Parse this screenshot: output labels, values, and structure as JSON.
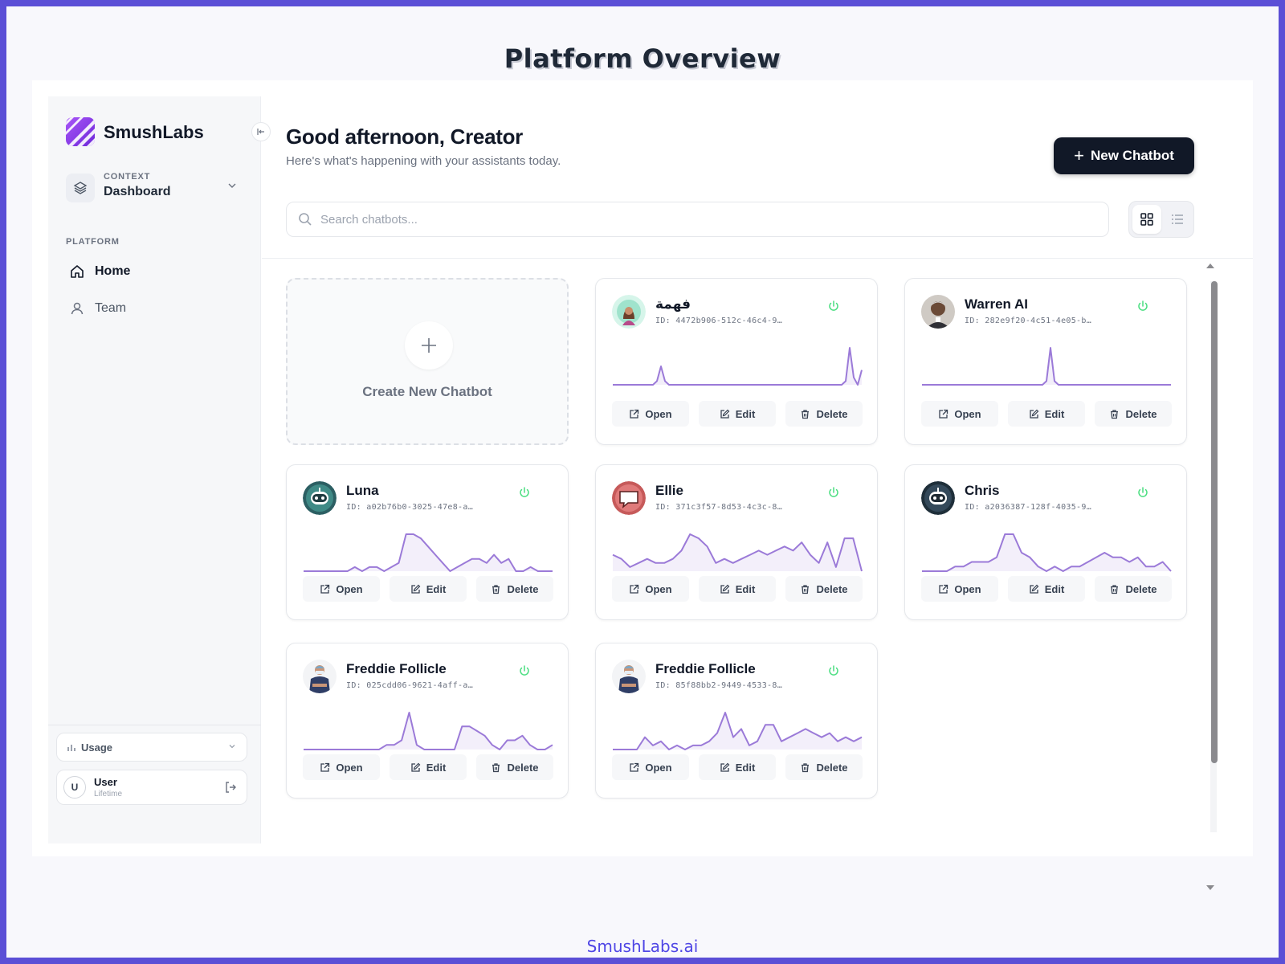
{
  "page_title": "Platform Overview",
  "footer_brand": "SmushLabs.ai",
  "sidebar": {
    "brand": "SmushLabs",
    "context_label": "CONTEXT",
    "context_value": "Dashboard",
    "section_label": "PLATFORM",
    "nav": [
      {
        "label": "Home",
        "icon": "home-icon",
        "active": true
      },
      {
        "label": "Team",
        "icon": "user-icon",
        "active": false
      }
    ],
    "usage_label": "Usage",
    "user": {
      "initial": "U",
      "name": "User",
      "plan": "Lifetime"
    }
  },
  "header": {
    "greeting": "Good afternoon, Creator",
    "subtext": "Here's what's happening with your assistants today.",
    "new_button": "New Chatbot"
  },
  "search": {
    "placeholder": "Search chatbots...",
    "value": ""
  },
  "create_card_label": "Create New Chatbot",
  "action_labels": {
    "open": "Open",
    "edit": "Edit",
    "delete": "Delete"
  },
  "colors": {
    "accent": "#9b7ad8",
    "power": "#4ade80",
    "dark_button": "#111827"
  },
  "chatbots": [
    {
      "name": "فهمة",
      "id": "ID: 4472b906-512c-46c4-9…",
      "avatar": "woman-portrait",
      "active": true,
      "activity": [
        0,
        0,
        0,
        0,
        0,
        0,
        0,
        0,
        0,
        0,
        0,
        1,
        5,
        1,
        0,
        0,
        0,
        0,
        0,
        0,
        0,
        0,
        0,
        0,
        0,
        0,
        0,
        0,
        0,
        0,
        0,
        0,
        0,
        0,
        0,
        0,
        0,
        0,
        0,
        0,
        0,
        0,
        0,
        0,
        0,
        0,
        0,
        0,
        0,
        0,
        0,
        0,
        0,
        0,
        0,
        0,
        0,
        0,
        1,
        10,
        2,
        0,
        4
      ]
    },
    {
      "name": "Warren AI",
      "id": "ID: 282e9f20-4c51-4e05-b…",
      "avatar": "man-portrait",
      "active": true,
      "activity": [
        0,
        0,
        0,
        0,
        0,
        0,
        0,
        0,
        0,
        0,
        0,
        0,
        0,
        0,
        0,
        0,
        0,
        0,
        0,
        0,
        0,
        0,
        0,
        0,
        0,
        0,
        0,
        0,
        0,
        0,
        0,
        1,
        10,
        1,
        0,
        0,
        0,
        0,
        0,
        0,
        0,
        0,
        0,
        0,
        0,
        0,
        0,
        0,
        0,
        0,
        0,
        0,
        0,
        0,
        0,
        0,
        0,
        0,
        0,
        0,
        0,
        0,
        0
      ]
    },
    {
      "name": "Luna",
      "id": "ID: a02b76b0-3025-47e8-a…",
      "avatar": "robot-teal",
      "active": true,
      "activity": [
        0,
        0,
        0,
        0,
        0,
        0,
        0,
        1,
        0,
        1,
        1,
        0,
        1,
        2,
        9,
        9,
        8,
        6,
        4,
        2,
        0,
        1,
        2,
        3,
        3,
        2,
        4,
        2,
        3,
        0,
        0,
        1,
        0,
        0,
        0
      ]
    },
    {
      "name": "Ellie",
      "id": "ID: 371c3f57-8d53-4c3c-8…",
      "avatar": "chat-bubble-red",
      "active": true,
      "activity": [
        4,
        3,
        1,
        2,
        3,
        2,
        2,
        3,
        5,
        9,
        8,
        6,
        2,
        3,
        2,
        3,
        4,
        5,
        4,
        5,
        6,
        5,
        7,
        4,
        2,
        7,
        1,
        8,
        8,
        0
      ]
    },
    {
      "name": "Chris",
      "id": "ID: a2036387-128f-4035-9…",
      "avatar": "robot-dark",
      "active": true,
      "activity": [
        0,
        0,
        0,
        0,
        1,
        1,
        2,
        2,
        2,
        3,
        8,
        8,
        4,
        3,
        1,
        0,
        1,
        0,
        1,
        1,
        2,
        3,
        4,
        3,
        3,
        2,
        3,
        1,
        1,
        2,
        0
      ]
    },
    {
      "name": "Freddie Follicle",
      "id": "ID: 025cdd06-9621-4aff-a…",
      "avatar": "surgeon-portrait",
      "active": true,
      "activity": [
        0,
        0,
        0,
        0,
        0,
        0,
        0,
        0,
        0,
        0,
        0,
        1,
        1,
        2,
        8,
        1,
        0,
        0,
        0,
        0,
        0,
        5,
        5,
        4,
        3,
        1,
        0,
        2,
        2,
        3,
        1,
        0,
        0,
        1
      ]
    },
    {
      "name": "Freddie Follicle",
      "id": "ID: 85f88bb2-9449-4533-8…",
      "avatar": "surgeon-portrait",
      "active": true,
      "activity": [
        0,
        0,
        0,
        0,
        3,
        1,
        2,
        0,
        1,
        0,
        1,
        1,
        2,
        4,
        9,
        3,
        5,
        1,
        2,
        6,
        6,
        2,
        3,
        4,
        5,
        4,
        3,
        4,
        2,
        3,
        2,
        3
      ]
    }
  ]
}
